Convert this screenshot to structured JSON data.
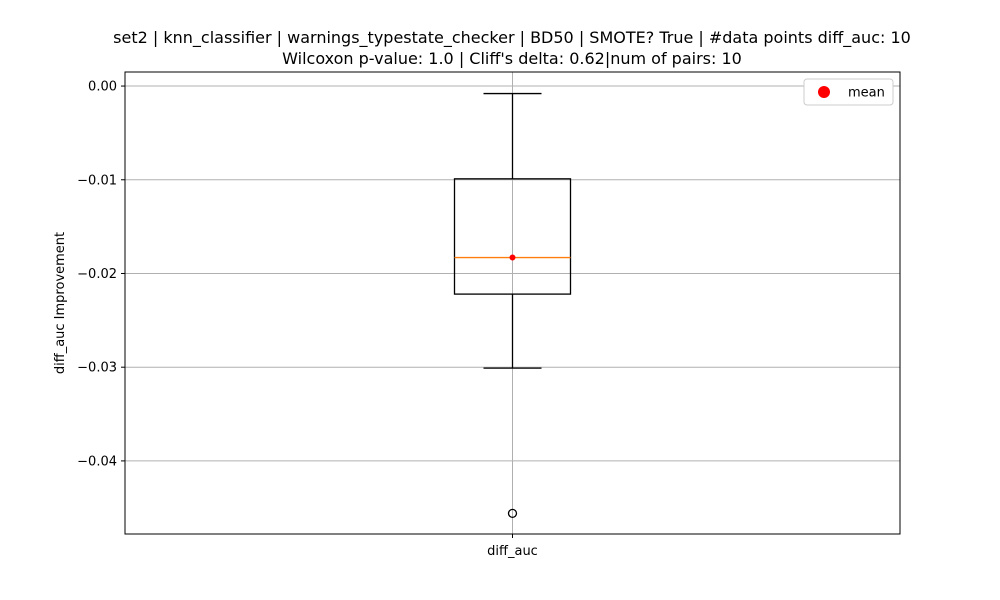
{
  "chart_data": {
    "type": "box",
    "title_line1": "set2 | knn_classifier | warnings_typestate_checker | BD50 | SMOTE? True | #data points diff_auc: 10",
    "title_line2": "Wilcoxon p-value: 1.0 | Cliff's delta: 0.62|num of pairs: 10",
    "xlabel": "",
    "ylabel": "diff_auc Improvement",
    "categories": [
      "diff_auc"
    ],
    "ylim": [
      -0.0478,
      0.0015
    ],
    "yticks": [
      0.0,
      -0.01,
      -0.02,
      -0.03,
      -0.04
    ],
    "ytick_labels": [
      "0.00",
      "−0.01",
      "−0.02",
      "−0.03",
      "−0.04"
    ],
    "grid": true,
    "legend_position": "top-right",
    "legend": [
      {
        "label": "mean",
        "color": "#ff0000",
        "marker": "circle"
      }
    ],
    "boxes": [
      {
        "name": "diff_auc",
        "whisker_high": -0.0008,
        "q3": -0.0099,
        "median": -0.0183,
        "mean": -0.0183,
        "q1": -0.0222,
        "whisker_low": -0.0301,
        "outliers": [
          -0.0456
        ]
      }
    ],
    "colors": {
      "box": "#000000",
      "median": "#ff7f0e",
      "mean": "#ff0000",
      "grid": "#b0b0b0"
    }
  }
}
